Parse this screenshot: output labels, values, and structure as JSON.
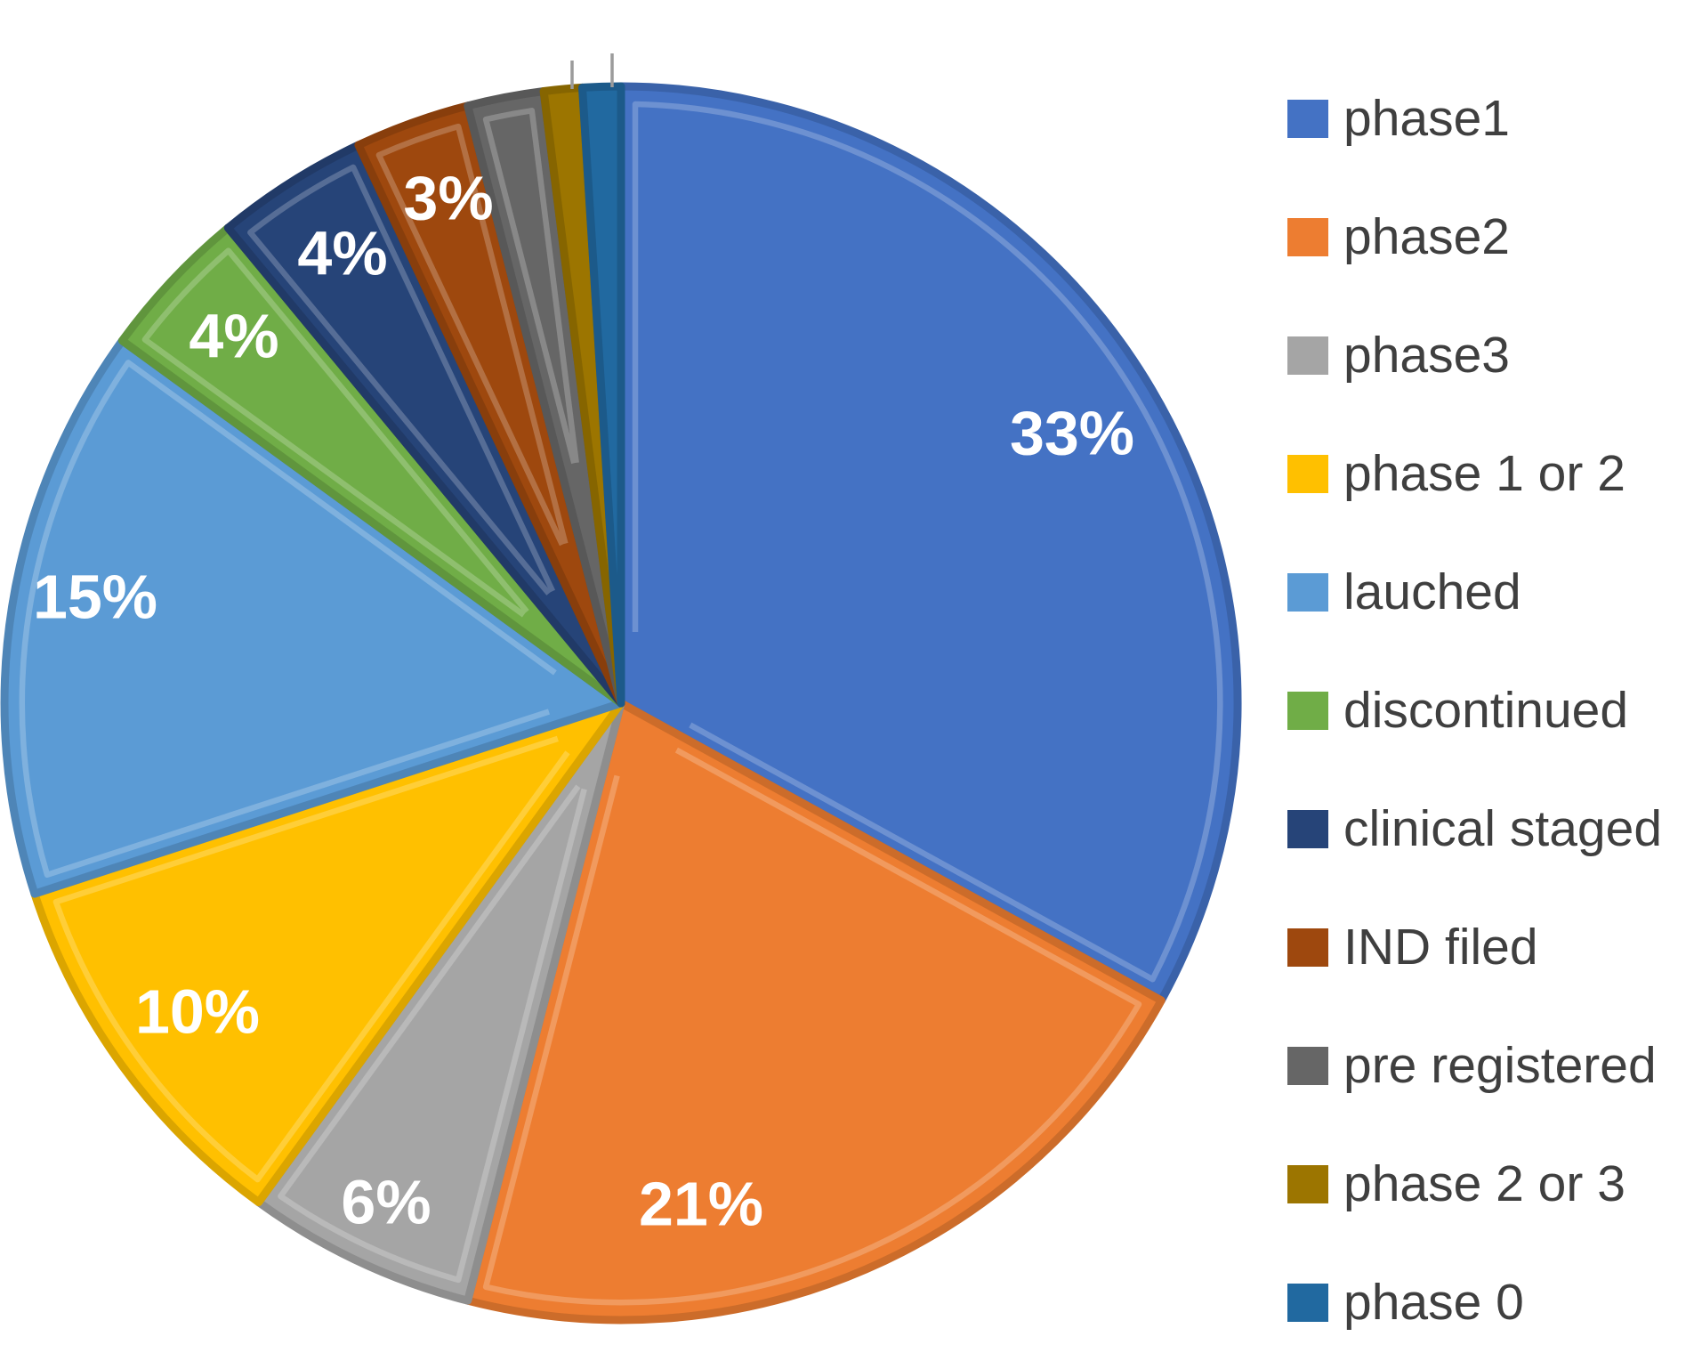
{
  "chart_data": {
    "type": "pie",
    "title": "",
    "start_angle_deg": 0,
    "direction": "clockwise",
    "legend_position": "right",
    "grid": false,
    "background_color": "#ffffff",
    "data_label_color": "#ffffff",
    "legend_text_color": "#3f3f3f",
    "slices": [
      {
        "label": "phase1",
        "value_pct": 33,
        "color": "#4472C4",
        "data_label": "33%"
      },
      {
        "label": "phase2",
        "value_pct": 21,
        "color": "#ED7D31",
        "data_label": "21%"
      },
      {
        "label": "phase3",
        "value_pct": 6,
        "color": "#A5A5A5",
        "data_label": "6%"
      },
      {
        "label": "phase 1 or 2",
        "value_pct": 10,
        "color": "#FFC000",
        "data_label": "10%"
      },
      {
        "label": "lauched",
        "value_pct": 15,
        "color": "#5B9BD5",
        "data_label": "15%"
      },
      {
        "label": "discontinued",
        "value_pct": 4,
        "color": "#70AD47",
        "data_label": "4%"
      },
      {
        "label": "clinical staged",
        "value_pct": 4,
        "color": "#264478",
        "data_label": "4%"
      },
      {
        "label": "IND filed",
        "value_pct": 3,
        "color": "#9E480E",
        "data_label": "3%"
      },
      {
        "label": "pre registered",
        "value_pct": 2,
        "color": "#666666",
        "data_label": ""
      },
      {
        "label": "phase 2 or 3",
        "value_pct": 1,
        "color": "#9C7500",
        "data_label": ""
      },
      {
        "label": "phase 0",
        "value_pct": 1,
        "color": "#2169A0",
        "data_label": ""
      }
    ]
  }
}
